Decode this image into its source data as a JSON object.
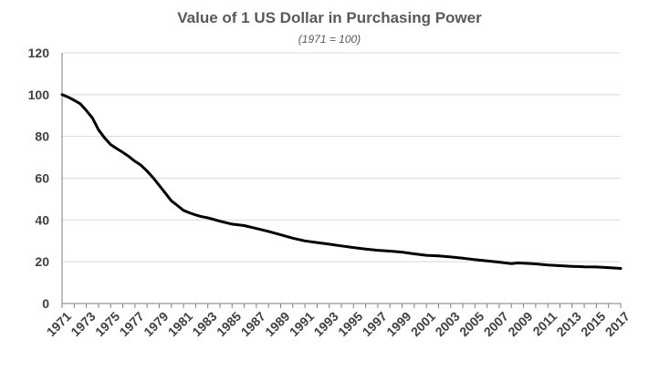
{
  "chart_data": {
    "type": "line",
    "title": "Value of 1 US Dollar in Purchasing Power",
    "subtitle": "(1971 = 100)",
    "xlabel": "",
    "ylabel": "",
    "xlim": [
      1971,
      2017
    ],
    "ylim": [
      0,
      120
    ],
    "y_ticks": [
      0,
      20,
      40,
      60,
      80,
      100,
      120
    ],
    "x_tick_labels": [
      "1971",
      "1973",
      "1975",
      "1977",
      "1979",
      "1981",
      "1983",
      "1985",
      "1987",
      "1989",
      "1991",
      "1993",
      "1995",
      "1997",
      "1999",
      "2001",
      "2003",
      "2005",
      "2007",
      "2009",
      "2011",
      "2013",
      "2015",
      "2017"
    ],
    "grid": {
      "horizontal": true,
      "vertical": false
    },
    "legend": "none",
    "line_color": "#000000",
    "series": [
      {
        "x": [
          1971,
          1971.5,
          1972,
          1972.5,
          1973,
          1973.5,
          1974,
          1974.5,
          1975,
          1975.5,
          1976,
          1976.5,
          1977,
          1977.5,
          1978,
          1978.5,
          1979,
          1979.5,
          1980,
          1980.5,
          1981,
          1981.5,
          1982,
          1982.5,
          1983,
          1984,
          1985,
          1986,
          1987,
          1988,
          1989,
          1990,
          1991,
          1992,
          1993,
          1994,
          1995,
          1996,
          1997,
          1998,
          1999,
          2000,
          2001,
          2002,
          2003,
          2004,
          2005,
          2006,
          2007,
          2008,
          2008.5,
          2009,
          2010,
          2011,
          2012,
          2013,
          2014,
          2015,
          2016,
          2017
        ],
        "values": [
          100,
          98.8,
          97.3,
          95.6,
          92.4,
          88.8,
          83.2,
          79.3,
          76.1,
          74.2,
          72.4,
          70.4,
          68.1,
          66.2,
          63.4,
          60.2,
          56.6,
          52.9,
          49.2,
          46.9,
          44.6,
          43.4,
          42.4,
          41.6,
          41.0,
          39.4,
          38.0,
          37.3,
          35.9,
          34.5,
          32.9,
          31.3,
          30.0,
          29.2,
          28.4,
          27.6,
          26.8,
          26.1,
          25.5,
          25.1,
          24.6,
          23.8,
          23.1,
          22.8,
          22.3,
          21.7,
          21.0,
          20.4,
          19.8,
          19.1,
          19.4,
          19.3,
          19.0,
          18.4,
          18.1,
          17.8,
          17.6,
          17.5,
          17.2,
          16.8
        ]
      }
    ]
  }
}
